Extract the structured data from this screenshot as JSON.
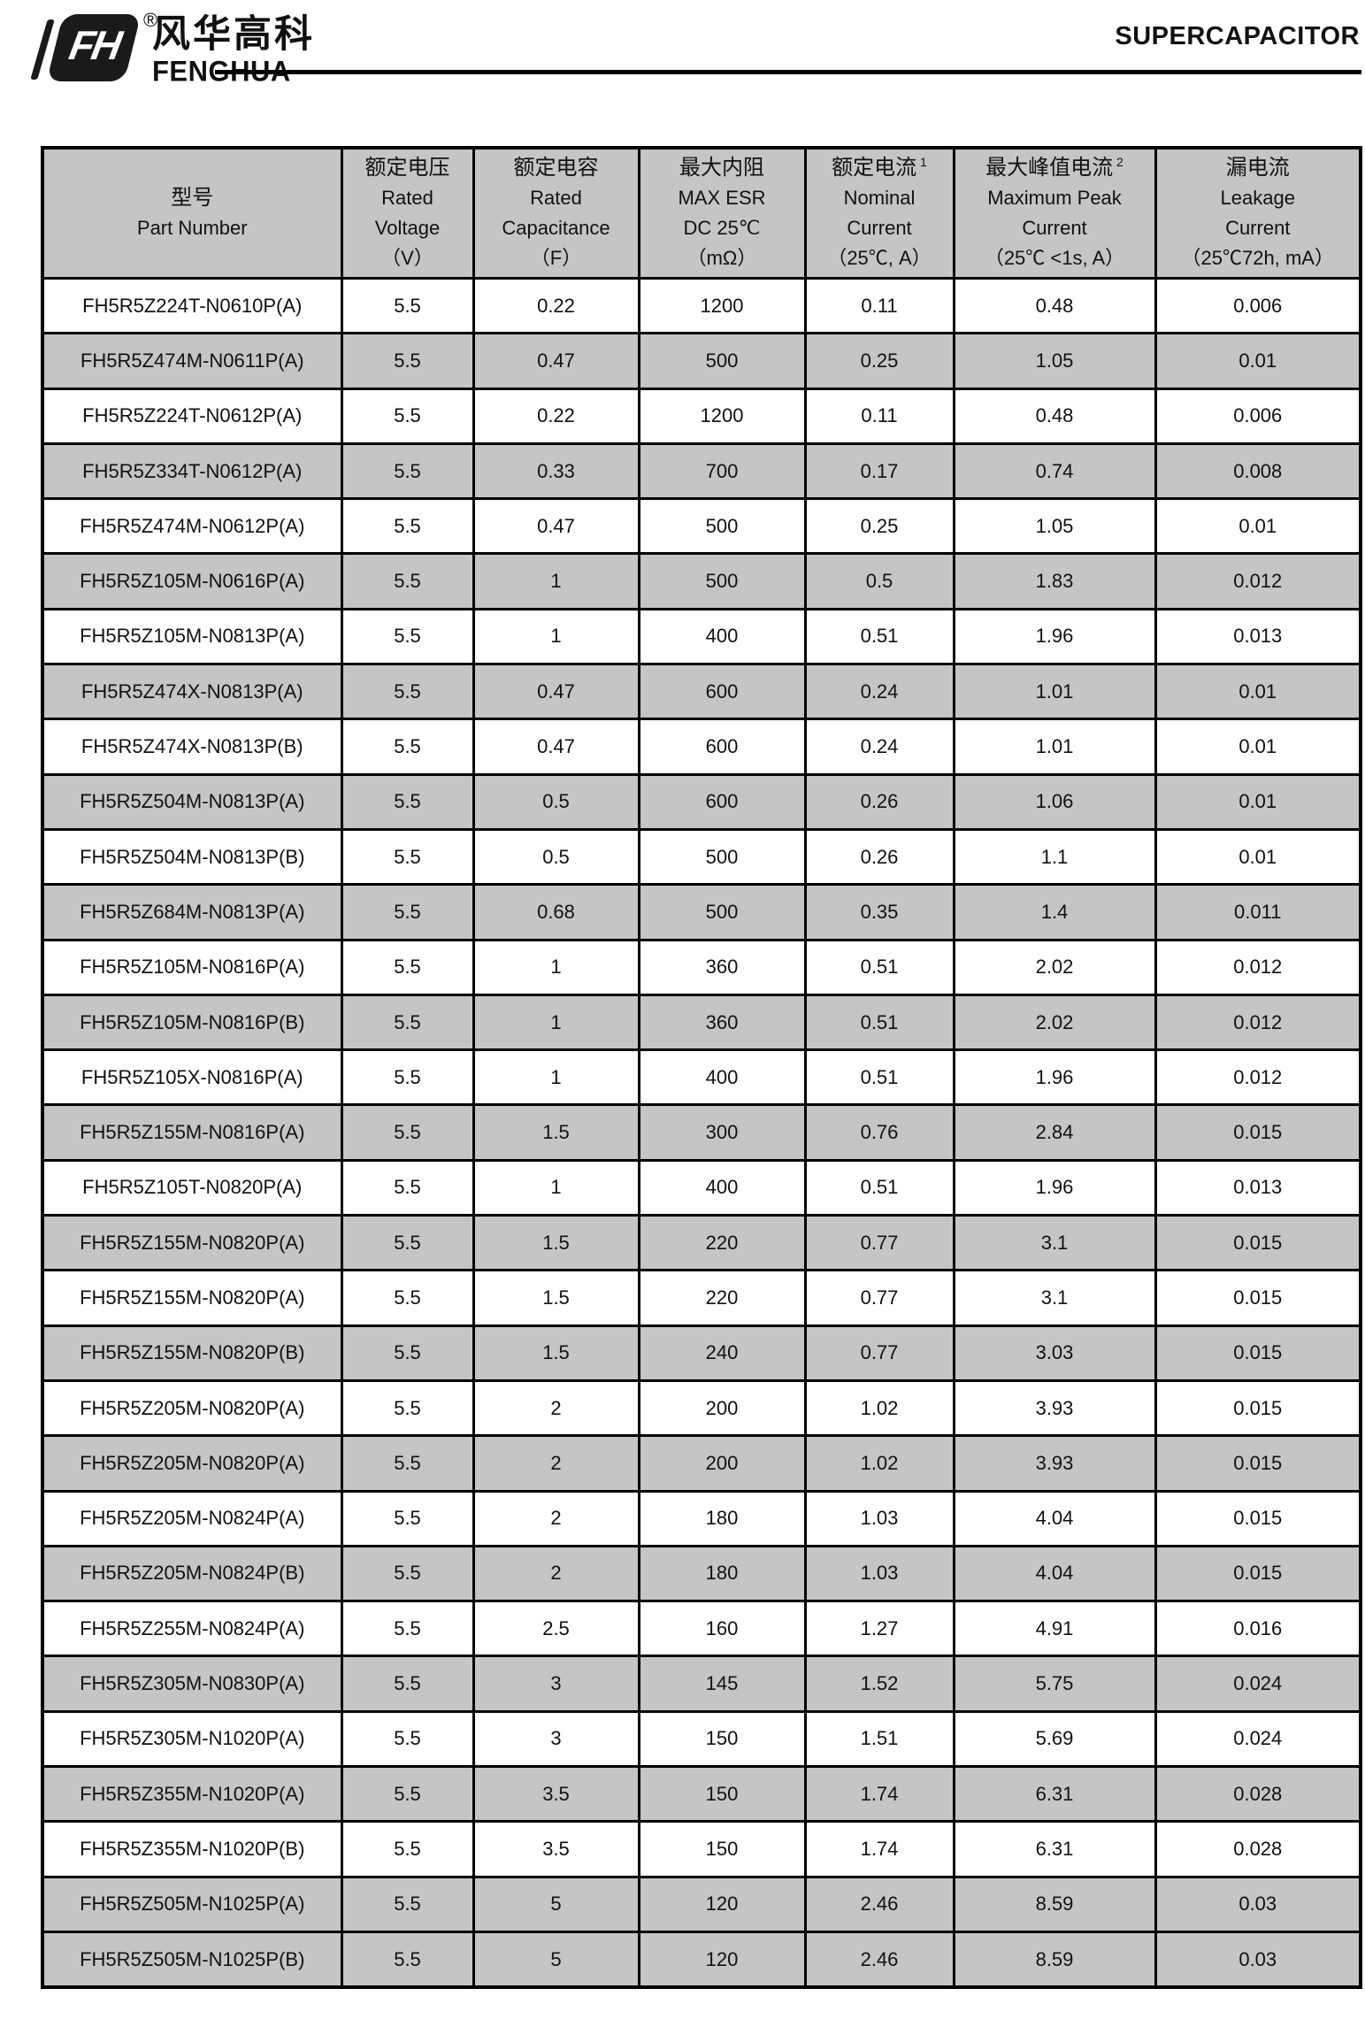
{
  "brand": {
    "logo_mark": "FH",
    "registered_mark": "®",
    "name_cn": "风华高科",
    "name_en": "FENGHUA"
  },
  "doc": {
    "title": "SUPERCAPACITOR"
  },
  "table": {
    "columns": [
      {
        "id": "part_number",
        "lines": [
          "型号",
          "Part Number"
        ],
        "sup": ""
      },
      {
        "id": "rated_voltage",
        "lines": [
          "额定电压",
          "Rated",
          "Voltage",
          "（V）"
        ],
        "sup": ""
      },
      {
        "id": "rated_capacitance",
        "lines": [
          "额定电容",
          "Rated",
          "Capacitance",
          "（F）"
        ],
        "sup": ""
      },
      {
        "id": "max_esr",
        "lines": [
          "最大内阻",
          "MAX ESR",
          "DC 25℃",
          "（mΩ）"
        ],
        "sup": ""
      },
      {
        "id": "nominal_current",
        "lines": [
          "额定电流",
          "Nominal",
          "Current",
          "（25℃, A）"
        ],
        "sup": "1"
      },
      {
        "id": "max_peak_current",
        "lines": [
          "最大峰值电流",
          "Maximum Peak",
          "Current",
          "（25℃ <1s, A）"
        ],
        "sup": "2"
      },
      {
        "id": "leakage_current",
        "lines": [
          "漏电流",
          "Leakage",
          "Current",
          "（25℃72h, mA）"
        ],
        "sup": ""
      }
    ],
    "rows": [
      {
        "part": "FH5R5Z224T-N0610P(A)",
        "voltage": "5.5",
        "capacitance": "0.22",
        "esr": "1200",
        "nominal": "0.11",
        "peak": "0.48",
        "leakage": "0.006",
        "shaded": false
      },
      {
        "part": "FH5R5Z474M-N0611P(A)",
        "voltage": "5.5",
        "capacitance": "0.47",
        "esr": "500",
        "nominal": "0.25",
        "peak": "1.05",
        "leakage": "0.01",
        "shaded": true
      },
      {
        "part": "FH5R5Z224T-N0612P(A)",
        "voltage": "5.5",
        "capacitance": "0.22",
        "esr": "1200",
        "nominal": "0.11",
        "peak": "0.48",
        "leakage": "0.006",
        "shaded": false
      },
      {
        "part": "FH5R5Z334T-N0612P(A)",
        "voltage": "5.5",
        "capacitance": "0.33",
        "esr": "700",
        "nominal": "0.17",
        "peak": "0.74",
        "leakage": "0.008",
        "shaded": true
      },
      {
        "part": "FH5R5Z474M-N0612P(A)",
        "voltage": "5.5",
        "capacitance": "0.47",
        "esr": "500",
        "nominal": "0.25",
        "peak": "1.05",
        "leakage": "0.01",
        "shaded": false
      },
      {
        "part": "FH5R5Z105M-N0616P(A)",
        "voltage": "5.5",
        "capacitance": "1",
        "esr": "500",
        "nominal": "0.5",
        "peak": "1.83",
        "leakage": "0.012",
        "shaded": true
      },
      {
        "part": "FH5R5Z105M-N0813P(A)",
        "voltage": "5.5",
        "capacitance": "1",
        "esr": "400",
        "nominal": "0.51",
        "peak": "1.96",
        "leakage": "0.013",
        "shaded": false
      },
      {
        "part": "FH5R5Z474X-N0813P(A)",
        "voltage": "5.5",
        "capacitance": "0.47",
        "esr": "600",
        "nominal": "0.24",
        "peak": "1.01",
        "leakage": "0.01",
        "shaded": true
      },
      {
        "part": "FH5R5Z474X-N0813P(B)",
        "voltage": "5.5",
        "capacitance": "0.47",
        "esr": "600",
        "nominal": "0.24",
        "peak": "1.01",
        "leakage": "0.01",
        "shaded": false
      },
      {
        "part": "FH5R5Z504M-N0813P(A)",
        "voltage": "5.5",
        "capacitance": "0.5",
        "esr": "600",
        "nominal": "0.26",
        "peak": "1.06",
        "leakage": "0.01",
        "shaded": true
      },
      {
        "part": "FH5R5Z504M-N0813P(B)",
        "voltage": "5.5",
        "capacitance": "0.5",
        "esr": "500",
        "nominal": "0.26",
        "peak": "1.1",
        "leakage": "0.01",
        "shaded": false
      },
      {
        "part": "FH5R5Z684M-N0813P(A)",
        "voltage": "5.5",
        "capacitance": "0.68",
        "esr": "500",
        "nominal": "0.35",
        "peak": "1.4",
        "leakage": "0.011",
        "shaded": true
      },
      {
        "part": "FH5R5Z105M-N0816P(A)",
        "voltage": "5.5",
        "capacitance": "1",
        "esr": "360",
        "nominal": "0.51",
        "peak": "2.02",
        "leakage": "0.012",
        "shaded": false
      },
      {
        "part": "FH5R5Z105M-N0816P(B)",
        "voltage": "5.5",
        "capacitance": "1",
        "esr": "360",
        "nominal": "0.51",
        "peak": "2.02",
        "leakage": "0.012",
        "shaded": true
      },
      {
        "part": "FH5R5Z105X-N0816P(A)",
        "voltage": "5.5",
        "capacitance": "1",
        "esr": "400",
        "nominal": "0.51",
        "peak": "1.96",
        "leakage": "0.012",
        "shaded": false
      },
      {
        "part": "FH5R5Z155M-N0816P(A)",
        "voltage": "5.5",
        "capacitance": "1.5",
        "esr": "300",
        "nominal": "0.76",
        "peak": "2.84",
        "leakage": "0.015",
        "shaded": true
      },
      {
        "part": "FH5R5Z105T-N0820P(A)",
        "voltage": "5.5",
        "capacitance": "1",
        "esr": "400",
        "nominal": "0.51",
        "peak": "1.96",
        "leakage": "0.013",
        "shaded": false
      },
      {
        "part": "FH5R5Z155M-N0820P(A)",
        "voltage": "5.5",
        "capacitance": "1.5",
        "esr": "220",
        "nominal": "0.77",
        "peak": "3.1",
        "leakage": "0.015",
        "shaded": true
      },
      {
        "part": "FH5R5Z155M-N0820P(A)",
        "voltage": "5.5",
        "capacitance": "1.5",
        "esr": "220",
        "nominal": "0.77",
        "peak": "3.1",
        "leakage": "0.015",
        "shaded": false
      },
      {
        "part": "FH5R5Z155M-N0820P(B)",
        "voltage": "5.5",
        "capacitance": "1.5",
        "esr": "240",
        "nominal": "0.77",
        "peak": "3.03",
        "leakage": "0.015",
        "shaded": true
      },
      {
        "part": "FH5R5Z205M-N0820P(A)",
        "voltage": "5.5",
        "capacitance": "2",
        "esr": "200",
        "nominal": "1.02",
        "peak": "3.93",
        "leakage": "0.015",
        "shaded": false
      },
      {
        "part": "FH5R5Z205M-N0820P(A)",
        "voltage": "5.5",
        "capacitance": "2",
        "esr": "200",
        "nominal": "1.02",
        "peak": "3.93",
        "leakage": "0.015",
        "shaded": true
      },
      {
        "part": "FH5R5Z205M-N0824P(A)",
        "voltage": "5.5",
        "capacitance": "2",
        "esr": "180",
        "nominal": "1.03",
        "peak": "4.04",
        "leakage": "0.015",
        "shaded": false
      },
      {
        "part": "FH5R5Z205M-N0824P(B)",
        "voltage": "5.5",
        "capacitance": "2",
        "esr": "180",
        "nominal": "1.03",
        "peak": "4.04",
        "leakage": "0.015",
        "shaded": true
      },
      {
        "part": "FH5R5Z255M-N0824P(A)",
        "voltage": "5.5",
        "capacitance": "2.5",
        "esr": "160",
        "nominal": "1.27",
        "peak": "4.91",
        "leakage": "0.016",
        "shaded": false
      },
      {
        "part": "FH5R5Z305M-N0830P(A)",
        "voltage": "5.5",
        "capacitance": "3",
        "esr": "145",
        "nominal": "1.52",
        "peak": "5.75",
        "leakage": "0.024",
        "shaded": true
      },
      {
        "part": "FH5R5Z305M-N1020P(A)",
        "voltage": "5.5",
        "capacitance": "3",
        "esr": "150",
        "nominal": "1.51",
        "peak": "5.69",
        "leakage": "0.024",
        "shaded": false
      },
      {
        "part": "FH5R5Z355M-N1020P(A)",
        "voltage": "5.5",
        "capacitance": "3.5",
        "esr": "150",
        "nominal": "1.74",
        "peak": "6.31",
        "leakage": "0.028",
        "shaded": true
      },
      {
        "part": "FH5R5Z355M-N1020P(B)",
        "voltage": "5.5",
        "capacitance": "3.5",
        "esr": "150",
        "nominal": "1.74",
        "peak": "6.31",
        "leakage": "0.028",
        "shaded": false
      },
      {
        "part": "FH5R5Z505M-N1025P(A)",
        "voltage": "5.5",
        "capacitance": "5",
        "esr": "120",
        "nominal": "2.46",
        "peak": "8.59",
        "leakage": "0.03",
        "shaded": true
      },
      {
        "part": "FH5R5Z505M-N1025P(B)",
        "voltage": "5.5",
        "capacitance": "5",
        "esr": "120",
        "nominal": "2.46",
        "peak": "8.59",
        "leakage": "0.03",
        "shaded": true
      }
    ],
    "colors": {
      "shaded_row_bg": "#c5c5c5",
      "header_bg": "#c5c5c5",
      "border": "#000000"
    }
  }
}
